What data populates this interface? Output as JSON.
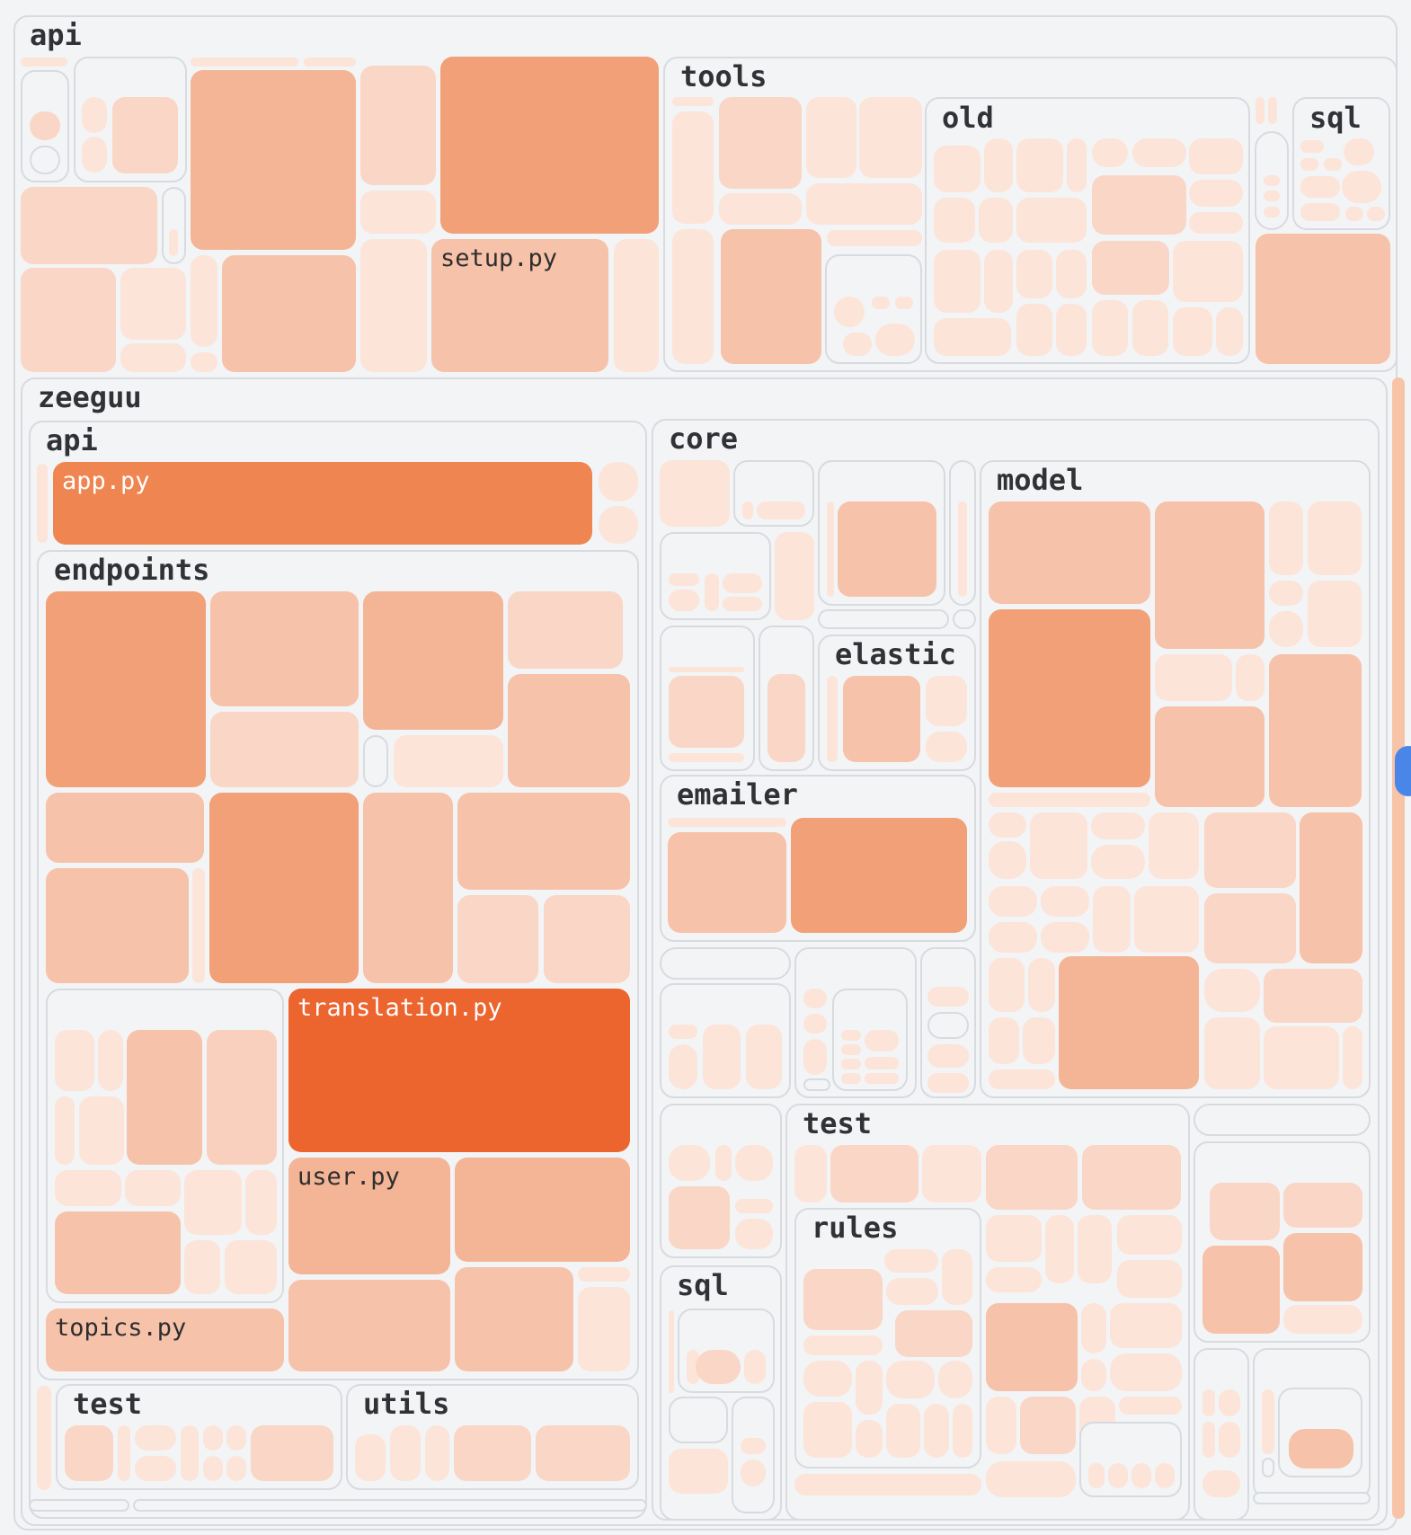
{
  "colors": {
    "background": "#f3f4f6",
    "border": "#d7dbe0",
    "heat_scale": [
      "#fce4d9",
      "#f9d6c6",
      "#f6c2a9",
      "#f3b595",
      "#f1a077",
      "#ef8550",
      "#ec642e"
    ],
    "scroll_track": "#f7c4a8",
    "scroll_thumb": "#4a86e8"
  },
  "labels": {
    "root_api": "api",
    "tools": "tools",
    "old": "old",
    "sql_top": "sql",
    "zeeguu": "zeeguu",
    "zeeguu_api": "api",
    "endpoints": "endpoints",
    "core": "core",
    "model": "model",
    "elastic": "elastic",
    "emailer": "emailer",
    "core_test": "test",
    "rules": "rules",
    "core_sql": "sql",
    "api_test": "test",
    "utils": "utils"
  },
  "files": {
    "setup": "setup.py",
    "app": "app.py",
    "translation": "translation.py",
    "user": "user.py",
    "topics": "topics.py"
  }
}
